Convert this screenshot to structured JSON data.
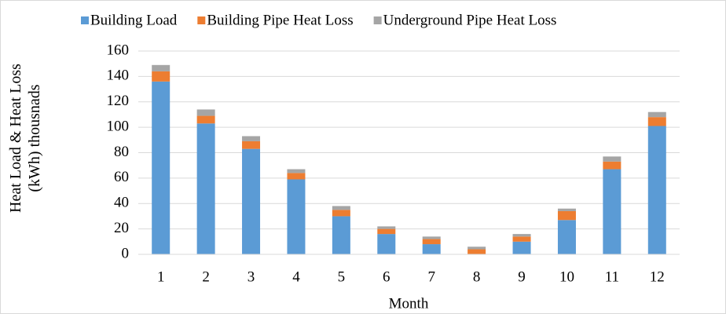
{
  "chart_data": {
    "type": "stacked_bar",
    "x_label": "Month",
    "y_label": "Heat Load & Heat Loss (kWh) thousnads",
    "categories": [
      "1",
      "2",
      "3",
      "4",
      "5",
      "6",
      "7",
      "8",
      "9",
      "10",
      "11",
      "12"
    ],
    "series": [
      {
        "name": "Building Load",
        "color": "#5b9bd5",
        "values": [
          136,
          103,
          83,
          59,
          30,
          16,
          8,
          0,
          10,
          27,
          67,
          101
        ]
      },
      {
        "name": "Building Pipe Heat Loss",
        "color": "#ed7d31",
        "values": [
          8,
          6,
          6,
          5,
          5,
          4,
          4,
          4,
          4,
          7,
          6,
          7
        ]
      },
      {
        "name": "Underground Pipe Heat Loss",
        "color": "#a5a5a5",
        "values": [
          5,
          5,
          4,
          3,
          3,
          2,
          2,
          2,
          2,
          2,
          4,
          4
        ]
      }
    ],
    "ylim": [
      0,
      160
    ],
    "yticks": [
      0,
      20,
      40,
      60,
      80,
      100,
      120,
      140,
      160
    ],
    "grid": true
  }
}
